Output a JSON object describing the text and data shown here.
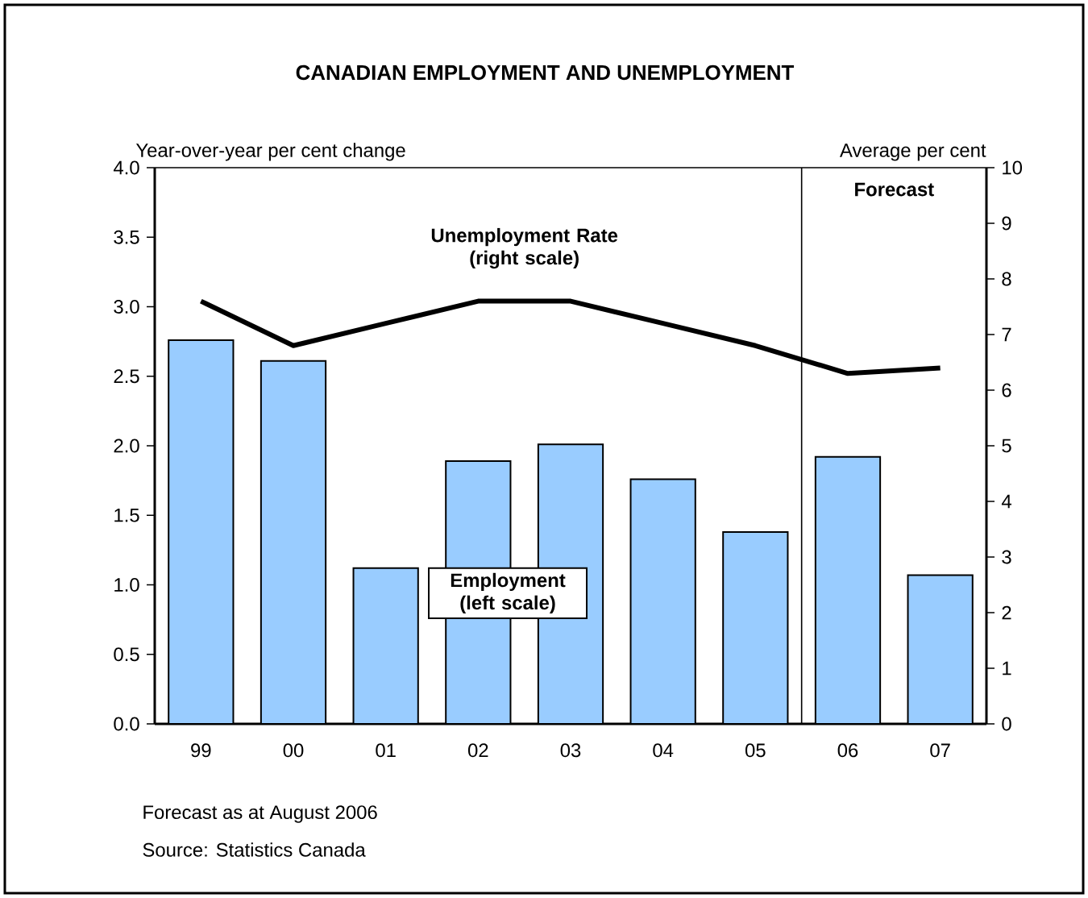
{
  "chart_data": {
    "type": "bar",
    "title": "CANADIAN EMPLOYMENT AND UNEMPLOYMENT",
    "ylabel": "Year-over-year per cent change",
    "y2label": "Average per cent",
    "categories": [
      "99",
      "00",
      "01",
      "02",
      "03",
      "04",
      "05",
      "06",
      "07"
    ],
    "series": [
      {
        "name": "Employment (left scale)",
        "color": "#99ccff",
        "values": [
          2.76,
          2.61,
          1.12,
          1.89,
          2.01,
          1.76,
          1.38,
          1.92,
          1.07
        ]
      },
      {
        "name": "Unemployment Rate (right scale)",
        "type": "line",
        "axis": "y2",
        "color": "#000000",
        "values": [
          7.6,
          6.8,
          7.2,
          7.6,
          7.6,
          7.2,
          6.8,
          6.3,
          6.4
        ]
      }
    ],
    "ylim": [
      0,
      4
    ],
    "yticks": [
      {
        "value": 0,
        "label": "0.0"
      },
      {
        "value": 0.5,
        "label": "0.5"
      },
      {
        "value": 1,
        "label": "1.0"
      },
      {
        "value": 1.5,
        "label": "1.5"
      },
      {
        "value": 2,
        "label": "2.0"
      },
      {
        "value": 2.5,
        "label": "2.5"
      },
      {
        "value": 3,
        "label": "3.0"
      },
      {
        "value": 3.5,
        "label": "3.5"
      },
      {
        "value": 4,
        "label": "4.0"
      }
    ],
    "y2lim": [
      0,
      10
    ],
    "y2ticks": [
      0,
      1,
      2,
      3,
      4,
      5,
      6,
      7,
      8,
      9,
      10
    ],
    "annotations": [
      "Forecast",
      "Forecast as at August 2006",
      "Source: Statistics Canada"
    ]
  }
}
